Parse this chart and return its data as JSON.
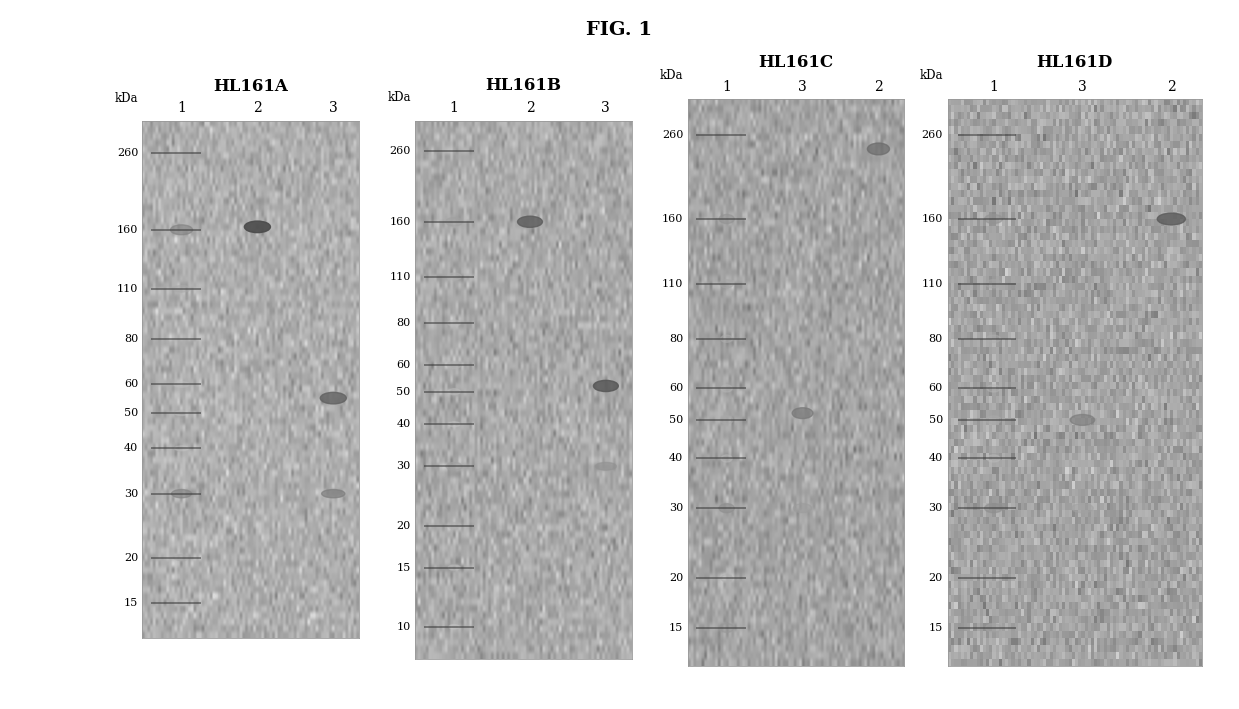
{
  "title": "FIG. 1",
  "title_fontsize": 14,
  "title_fontweight": "bold",
  "outer_bg": "#ffffff",
  "panels": [
    {
      "title": "HL161A",
      "lane_labels": [
        "1",
        "2",
        "3"
      ],
      "kda_labels": [
        260,
        160,
        110,
        80,
        60,
        50,
        40,
        30,
        20,
        15
      ],
      "kda_min": 12,
      "kda_max": 320,
      "gel_bg": "#c8c8c8",
      "bands": [
        {
          "lane": 0,
          "kda": 160,
          "intensity": 0.55,
          "bw": 0.55,
          "bh": 0.012
        },
        {
          "lane": 0,
          "kda": 110,
          "intensity": 0.38,
          "bw": 0.45,
          "bh": 0.008
        },
        {
          "lane": 0,
          "kda": 60,
          "intensity": 0.3,
          "bw": 0.38,
          "bh": 0.007
        },
        {
          "lane": 0,
          "kda": 50,
          "intensity": 0.28,
          "bw": 0.35,
          "bh": 0.006
        },
        {
          "lane": 0,
          "kda": 40,
          "intensity": 0.26,
          "bw": 0.35,
          "bh": 0.006
        },
        {
          "lane": 0,
          "kda": 30,
          "intensity": 0.55,
          "bw": 0.5,
          "bh": 0.01
        },
        {
          "lane": 0,
          "kda": 20,
          "intensity": 0.38,
          "bw": 0.4,
          "bh": 0.007
        },
        {
          "lane": 0,
          "kda": 15,
          "intensity": 0.32,
          "bw": 0.35,
          "bh": 0.006
        },
        {
          "lane": 1,
          "kda": 163,
          "intensity": 0.8,
          "bw": 0.65,
          "bh": 0.014
        },
        {
          "lane": 2,
          "kda": 55,
          "intensity": 0.7,
          "bw": 0.65,
          "bh": 0.014
        },
        {
          "lane": 2,
          "kda": 30,
          "intensity": 0.58,
          "bw": 0.58,
          "bh": 0.01
        }
      ]
    },
    {
      "title": "HL161B",
      "lane_labels": [
        "1",
        "2",
        "3"
      ],
      "kda_labels": [
        260,
        160,
        110,
        80,
        60,
        50,
        40,
        30,
        20,
        15,
        10
      ],
      "kda_min": 8,
      "kda_max": 320,
      "gel_bg": "#c0c0c0",
      "bands": [
        {
          "lane": 0,
          "kda": 160,
          "intensity": 0.42,
          "bw": 0.42,
          "bh": 0.01
        },
        {
          "lane": 0,
          "kda": 110,
          "intensity": 0.35,
          "bw": 0.36,
          "bh": 0.008
        },
        {
          "lane": 0,
          "kda": 80,
          "intensity": 0.3,
          "bw": 0.32,
          "bh": 0.007
        },
        {
          "lane": 0,
          "kda": 60,
          "intensity": 0.33,
          "bw": 0.36,
          "bh": 0.008
        },
        {
          "lane": 0,
          "kda": 50,
          "intensity": 0.28,
          "bw": 0.32,
          "bh": 0.007
        },
        {
          "lane": 0,
          "kda": 40,
          "intensity": 0.26,
          "bw": 0.3,
          "bh": 0.006
        },
        {
          "lane": 0,
          "kda": 30,
          "intensity": 0.42,
          "bw": 0.4,
          "bh": 0.009
        },
        {
          "lane": 0,
          "kda": 20,
          "intensity": 0.35,
          "bw": 0.35,
          "bh": 0.007
        },
        {
          "lane": 0,
          "kda": 15,
          "intensity": 0.28,
          "bw": 0.3,
          "bh": 0.006
        },
        {
          "lane": 0,
          "kda": 10,
          "intensity": 0.24,
          "bw": 0.26,
          "bh": 0.005
        },
        {
          "lane": 1,
          "kda": 160,
          "intensity": 0.72,
          "bw": 0.62,
          "bh": 0.013
        },
        {
          "lane": 2,
          "kda": 52,
          "intensity": 0.75,
          "bw": 0.62,
          "bh": 0.013
        },
        {
          "lane": 2,
          "kda": 30,
          "intensity": 0.48,
          "bw": 0.52,
          "bh": 0.009
        }
      ]
    },
    {
      "title": "HL161C",
      "lane_labels": [
        "1",
        "3",
        "2"
      ],
      "kda_labels": [
        260,
        160,
        110,
        80,
        60,
        50,
        40,
        30,
        20,
        15
      ],
      "kda_min": 12,
      "kda_max": 320,
      "gel_bg": "#b8b8b8",
      "bands": [
        {
          "lane": 0,
          "kda": 160,
          "intensity": 0.48,
          "bw": 0.38,
          "bh": 0.01
        },
        {
          "lane": 0,
          "kda": 110,
          "intensity": 0.4,
          "bw": 0.34,
          "bh": 0.009
        },
        {
          "lane": 0,
          "kda": 80,
          "intensity": 0.36,
          "bw": 0.3,
          "bh": 0.008
        },
        {
          "lane": 0,
          "kda": 60,
          "intensity": 0.33,
          "bw": 0.28,
          "bh": 0.008
        },
        {
          "lane": 0,
          "kda": 50,
          "intensity": 0.38,
          "bw": 0.32,
          "bh": 0.009
        },
        {
          "lane": 0,
          "kda": 40,
          "intensity": 0.3,
          "bw": 0.28,
          "bh": 0.008
        },
        {
          "lane": 0,
          "kda": 30,
          "intensity": 0.5,
          "bw": 0.38,
          "bh": 0.01
        },
        {
          "lane": 0,
          "kda": 20,
          "intensity": 0.36,
          "bw": 0.3,
          "bh": 0.008
        },
        {
          "lane": 0,
          "kda": 15,
          "intensity": 0.46,
          "bw": 0.36,
          "bh": 0.01
        },
        {
          "lane": 1,
          "kda": 52,
          "intensity": 0.6,
          "bw": 0.52,
          "bh": 0.012
        },
        {
          "lane": 1,
          "kda": 30,
          "intensity": 0.44,
          "bw": 0.46,
          "bh": 0.01
        },
        {
          "lane": 2,
          "kda": 240,
          "intensity": 0.65,
          "bw": 0.55,
          "bh": 0.013
        }
      ]
    },
    {
      "title": "HL161D",
      "lane_labels": [
        "1",
        "3",
        "2"
      ],
      "kda_labels": [
        260,
        160,
        110,
        80,
        60,
        50,
        40,
        30,
        20,
        15
      ],
      "kda_min": 12,
      "kda_max": 320,
      "gel_bg": "#b8b8b8",
      "bands": [
        {
          "lane": 0,
          "kda": 160,
          "intensity": 0.48,
          "bw": 0.38,
          "bh": 0.01
        },
        {
          "lane": 0,
          "kda": 110,
          "intensity": 0.4,
          "bw": 0.34,
          "bh": 0.009
        },
        {
          "lane": 0,
          "kda": 80,
          "intensity": 0.36,
          "bw": 0.3,
          "bh": 0.008
        },
        {
          "lane": 0,
          "kda": 60,
          "intensity": 0.33,
          "bw": 0.28,
          "bh": 0.008
        },
        {
          "lane": 0,
          "kda": 50,
          "intensity": 0.38,
          "bw": 0.32,
          "bh": 0.009
        },
        {
          "lane": 0,
          "kda": 40,
          "intensity": 0.3,
          "bw": 0.28,
          "bh": 0.008
        },
        {
          "lane": 0,
          "kda": 30,
          "intensity": 0.5,
          "bw": 0.38,
          "bh": 0.01
        },
        {
          "lane": 0,
          "kda": 20,
          "intensity": 0.36,
          "bw": 0.3,
          "bh": 0.008
        },
        {
          "lane": 0,
          "kda": 15,
          "intensity": 0.42,
          "bw": 0.34,
          "bh": 0.009
        },
        {
          "lane": 1,
          "kda": 50,
          "intensity": 0.58,
          "bw": 0.52,
          "bh": 0.012
        },
        {
          "lane": 1,
          "kda": 30,
          "intensity": 0.42,
          "bw": 0.46,
          "bh": 0.01
        },
        {
          "lane": 2,
          "kda": 160,
          "intensity": 0.72,
          "bw": 0.6,
          "bh": 0.013
        }
      ]
    }
  ]
}
